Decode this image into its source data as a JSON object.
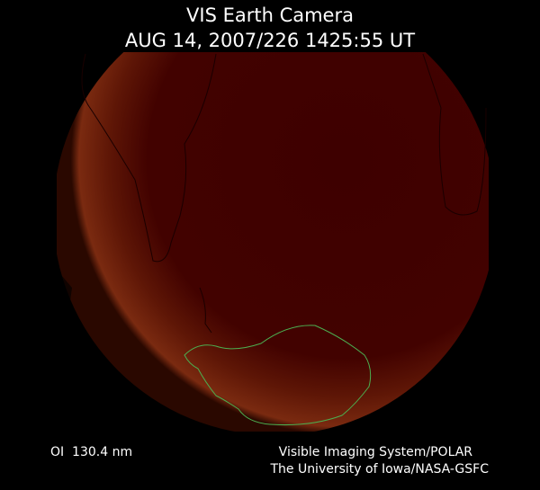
{
  "header": {
    "title": "VIS Earth Camera",
    "timestamp": "AUG 14, 2007/226 1425:55 UT"
  },
  "footer": {
    "filter": "OI  130.4 nm",
    "credit_line1": "Visible Imaging System/POLAR",
    "credit_line2": "The University of Iowa/NASA-GSFC"
  }
}
